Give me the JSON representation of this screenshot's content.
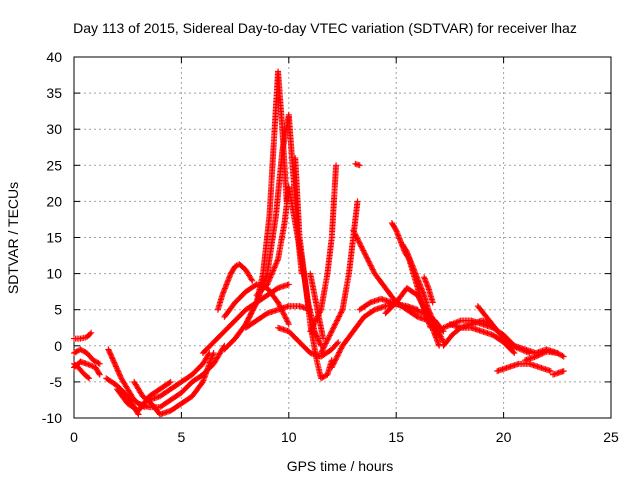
{
  "chart_data": {
    "type": "scatter",
    "title": "Day 113 of 2015, Sidereal Day-to-day VTEC variation (SDTVAR) for receiver lhaz",
    "xlabel": "GPS time / hours",
    "ylabel": "SDTVAR / TECUs",
    "xlim": [
      0,
      25
    ],
    "ylim": [
      -10,
      40
    ],
    "xticks": [
      "0",
      "5",
      "10",
      "15",
      "20",
      "25"
    ],
    "yticks": [
      "-10",
      "-5",
      "0",
      "5",
      "10",
      "15",
      "20",
      "25",
      "30",
      "35",
      "40"
    ],
    "grid": true,
    "marker": "+",
    "color": "#ff0000",
    "series": [
      {
        "name": "s1",
        "x": [
          0.0,
          0.3,
          0.6,
          0.8
        ],
        "y": [
          1.0,
          1.0,
          1.2,
          1.8
        ]
      },
      {
        "name": "s2",
        "x": [
          0.0,
          0.3,
          0.6,
          0.9,
          1.2
        ],
        "y": [
          -1.0,
          -0.5,
          -1.0,
          -2.0,
          -2.5
        ]
      },
      {
        "name": "s3",
        "x": [
          0.0,
          0.2,
          0.5,
          0.7
        ],
        "y": [
          -2.5,
          -3.0,
          -4.0,
          -4.5
        ]
      },
      {
        "name": "s4",
        "x": [
          0.0,
          0.3,
          0.6,
          1.0,
          1.2
        ],
        "y": [
          -3.0,
          -2.2,
          -2.5,
          -3.0,
          -4.0
        ]
      },
      {
        "name": "s5",
        "x": [
          1.6,
          1.9,
          2.2,
          2.5,
          2.8,
          3.0,
          3.3
        ],
        "y": [
          -0.5,
          -2.5,
          -4.5,
          -6.0,
          -7.5,
          -8.0,
          -8.5
        ]
      },
      {
        "name": "s6",
        "x": [
          1.5,
          2.0,
          2.5,
          2.8,
          3.0
        ],
        "y": [
          -4.5,
          -5.5,
          -7.0,
          -8.5,
          -9.5
        ]
      },
      {
        "name": "s7",
        "x": [
          2.0,
          2.5,
          3.0,
          3.5,
          4.0,
          4.5
        ],
        "y": [
          -6.0,
          -8.0,
          -9.0,
          -7.0,
          -6.0,
          -5.0
        ]
      },
      {
        "name": "s8",
        "x": [
          2.8,
          3.2,
          3.6,
          4.0,
          4.5,
          5.0,
          5.5,
          6.0,
          6.3,
          6.5
        ],
        "y": [
          -5.0,
          -7.0,
          -8.0,
          -9.5,
          -9.0,
          -8.0,
          -7.0,
          -5.0,
          -2.5,
          -1.0
        ]
      },
      {
        "name": "s9",
        "x": [
          3.0,
          3.5,
          4.0,
          4.5,
          5.0,
          5.5,
          6.0,
          6.5,
          7.0
        ],
        "y": [
          -8.0,
          -8.5,
          -8.5,
          -7.5,
          -6.5,
          -5.0,
          -4.0,
          -2.5,
          0.0
        ]
      },
      {
        "name": "s10",
        "x": [
          3.5,
          4.0,
          4.5,
          5.0,
          5.5,
          6.0,
          6.3
        ],
        "y": [
          -7.5,
          -7.0,
          -6.0,
          -5.0,
          -4.0,
          -2.5,
          -1.0
        ]
      },
      {
        "name": "s11",
        "x": [
          6.0,
          6.5,
          7.0,
          7.5,
          8.0,
          8.5,
          9.0,
          9.5,
          10.0
        ],
        "y": [
          -1.0,
          0.5,
          2.0,
          3.5,
          5.0,
          6.0,
          7.0,
          8.0,
          8.5
        ]
      },
      {
        "name": "s12",
        "x": [
          6.7,
          6.9,
          7.1,
          7.3,
          7.5,
          7.7,
          8.0,
          8.3
        ],
        "y": [
          5.0,
          7.0,
          8.5,
          10.0,
          11.0,
          11.3,
          10.5,
          9.0
        ]
      },
      {
        "name": "s13",
        "x": [
          7.0,
          7.5,
          8.0,
          8.5,
          9.0,
          9.5,
          10.0
        ],
        "y": [
          4.0,
          6.0,
          7.5,
          8.5,
          8.0,
          6.0,
          3.0
        ]
      },
      {
        "name": "s14",
        "x": [
          7.0,
          7.5,
          8.0,
          8.5,
          8.8,
          9.1,
          9.3,
          9.5,
          9.7,
          9.9
        ],
        "y": [
          -0.5,
          1.0,
          3.0,
          6.0,
          10.0,
          18.0,
          28.0,
          38.0,
          30.0,
          20.0
        ]
      },
      {
        "name": "s15",
        "x": [
          8.0,
          8.5,
          9.0,
          9.4,
          9.7,
          10.0,
          10.2,
          10.4,
          10.6
        ],
        "y": [
          3.0,
          6.0,
          10.0,
          18.0,
          27.0,
          32.0,
          24.0,
          16.0,
          10.0
        ]
      },
      {
        "name": "s16",
        "x": [
          8.5,
          9.0,
          9.5,
          9.8,
          10.0,
          10.3,
          10.6,
          10.9,
          11.2,
          11.5
        ],
        "y": [
          7.0,
          8.5,
          12.0,
          17.0,
          22.0,
          17.0,
          12.0,
          6.0,
          2.0,
          0.0
        ]
      },
      {
        "name": "s17",
        "x": [
          8.0,
          8.5,
          9.0,
          9.5,
          10.0,
          10.5,
          11.0
        ],
        "y": [
          2.5,
          3.5,
          4.5,
          5.0,
          5.5,
          5.5,
          5.0
        ]
      },
      {
        "name": "s18",
        "x": [
          9.5,
          10.0,
          10.5,
          11.0,
          11.5,
          12.0,
          12.3
        ],
        "y": [
          2.5,
          2.0,
          0.5,
          -1.0,
          -1.5,
          -0.5,
          0.5
        ]
      },
      {
        "name": "s19",
        "x": [
          10.3,
          10.5,
          10.8,
          11.0,
          11.3,
          11.5,
          11.8,
          12.0
        ],
        "y": [
          26.0,
          15.0,
          8.0,
          3.0,
          -2.0,
          -4.5,
          -4.0,
          -2.0
        ]
      },
      {
        "name": "s20",
        "x": [
          11.0,
          11.2,
          11.4,
          11.6
        ],
        "y": [
          10.0,
          7.0,
          4.0,
          1.0
        ]
      },
      {
        "name": "s21",
        "x": [
          11.0,
          11.5,
          11.8,
          12.0,
          12.1,
          12.2
        ],
        "y": [
          2.0,
          5.0,
          10.0,
          15.0,
          20.0,
          25.0
        ]
      },
      {
        "name": "s22",
        "x": [
          11.5,
          12.0,
          12.5,
          12.8,
          13.0,
          13.2
        ],
        "y": [
          -1.0,
          2.0,
          5.0,
          10.0,
          15.0,
          20.0
        ]
      },
      {
        "name": "s23",
        "x": [
          12.0,
          12.5,
          13.0,
          13.5,
          14.0,
          14.5,
          15.0,
          15.5,
          16.0
        ],
        "y": [
          -3.0,
          0.0,
          2.0,
          4.0,
          5.0,
          5.5,
          5.8,
          5.5,
          5.0
        ]
      },
      {
        "name": "s24",
        "x": [
          13.1,
          13.3
        ],
        "y": [
          25.2,
          25.0
        ]
      },
      {
        "name": "s25",
        "x": [
          13.0,
          13.5,
          14.0,
          14.5,
          15.0,
          15.5,
          16.0,
          16.5,
          17.0
        ],
        "y": [
          16.0,
          13.0,
          10.0,
          8.0,
          6.0,
          5.0,
          4.0,
          3.5,
          1.5
        ]
      },
      {
        "name": "s26",
        "x": [
          13.3,
          13.8,
          14.3,
          14.8,
          15.3,
          15.8,
          16.3,
          16.8,
          17.2
        ],
        "y": [
          5.0,
          6.0,
          6.5,
          6.0,
          5.5,
          5.0,
          4.5,
          3.5,
          2.0
        ]
      },
      {
        "name": "s27",
        "x": [
          14.5,
          15.0,
          15.5,
          16.0,
          16.5,
          17.0
        ],
        "y": [
          4.5,
          6.0,
          8.0,
          7.0,
          4.0,
          0.0
        ]
      },
      {
        "name": "s28",
        "x": [
          14.8,
          15.0,
          15.2,
          15.4,
          15.6,
          15.8,
          16.0,
          16.3,
          16.6
        ],
        "y": [
          17.0,
          16.0,
          14.5,
          13.0,
          12.0,
          10.0,
          8.0,
          5.0,
          2.5
        ]
      },
      {
        "name": "s29",
        "x": [
          15.3,
          15.5,
          15.7,
          15.9,
          16.1,
          16.3,
          16.5,
          16.8,
          17.2
        ],
        "y": [
          14.0,
          13.0,
          11.5,
          10.0,
          8.5,
          7.0,
          5.0,
          3.0,
          0.5
        ]
      },
      {
        "name": "s30",
        "x": [
          16.3,
          16.5,
          16.7
        ],
        "y": [
          9.5,
          8.0,
          6.0
        ]
      },
      {
        "name": "s31",
        "x": [
          16.8,
          17.2,
          17.6,
          18.0,
          18.5,
          19.0,
          19.5,
          20.0,
          20.5
        ],
        "y": [
          1.5,
          2.5,
          3.0,
          3.5,
          3.5,
          3.0,
          2.5,
          1.5,
          0.0
        ]
      },
      {
        "name": "s32",
        "x": [
          17.2,
          17.6,
          18.0,
          18.5,
          19.0,
          19.4
        ],
        "y": [
          0.0,
          1.5,
          2.5,
          3.0,
          3.5,
          3.0
        ]
      },
      {
        "name": "s33",
        "x": [
          17.5,
          18.0,
          18.5,
          19.0,
          19.5,
          20.0,
          20.5
        ],
        "y": [
          3.0,
          2.5,
          2.5,
          2.0,
          1.5,
          0.5,
          -1.0
        ]
      },
      {
        "name": "s34",
        "x": [
          18.8,
          19.2,
          19.6,
          20.0,
          20.4,
          20.8,
          21.2
        ],
        "y": [
          5.5,
          4.0,
          2.5,
          1.0,
          0.0,
          -0.5,
          -1.0
        ]
      },
      {
        "name": "s35",
        "x": [
          19.7,
          20.2,
          20.7,
          21.2,
          21.7,
          22.2
        ],
        "y": [
          -3.5,
          -3.0,
          -2.5,
          -2.5,
          -3.0,
          -3.5
        ]
      },
      {
        "name": "s36",
        "x": [
          20.5,
          21.0,
          21.5,
          22.0,
          22.5,
          22.8
        ],
        "y": [
          0.0,
          -0.5,
          -1.0,
          -0.5,
          -1.0,
          -1.5
        ]
      },
      {
        "name": "s37",
        "x": [
          21.0,
          21.5,
          22.0,
          22.5
        ],
        "y": [
          -2.0,
          -1.5,
          -0.8,
          -1.0
        ]
      },
      {
        "name": "s38",
        "x": [
          22.3,
          22.5,
          22.8
        ],
        "y": [
          -4.0,
          -3.8,
          -3.5
        ]
      }
    ]
  }
}
